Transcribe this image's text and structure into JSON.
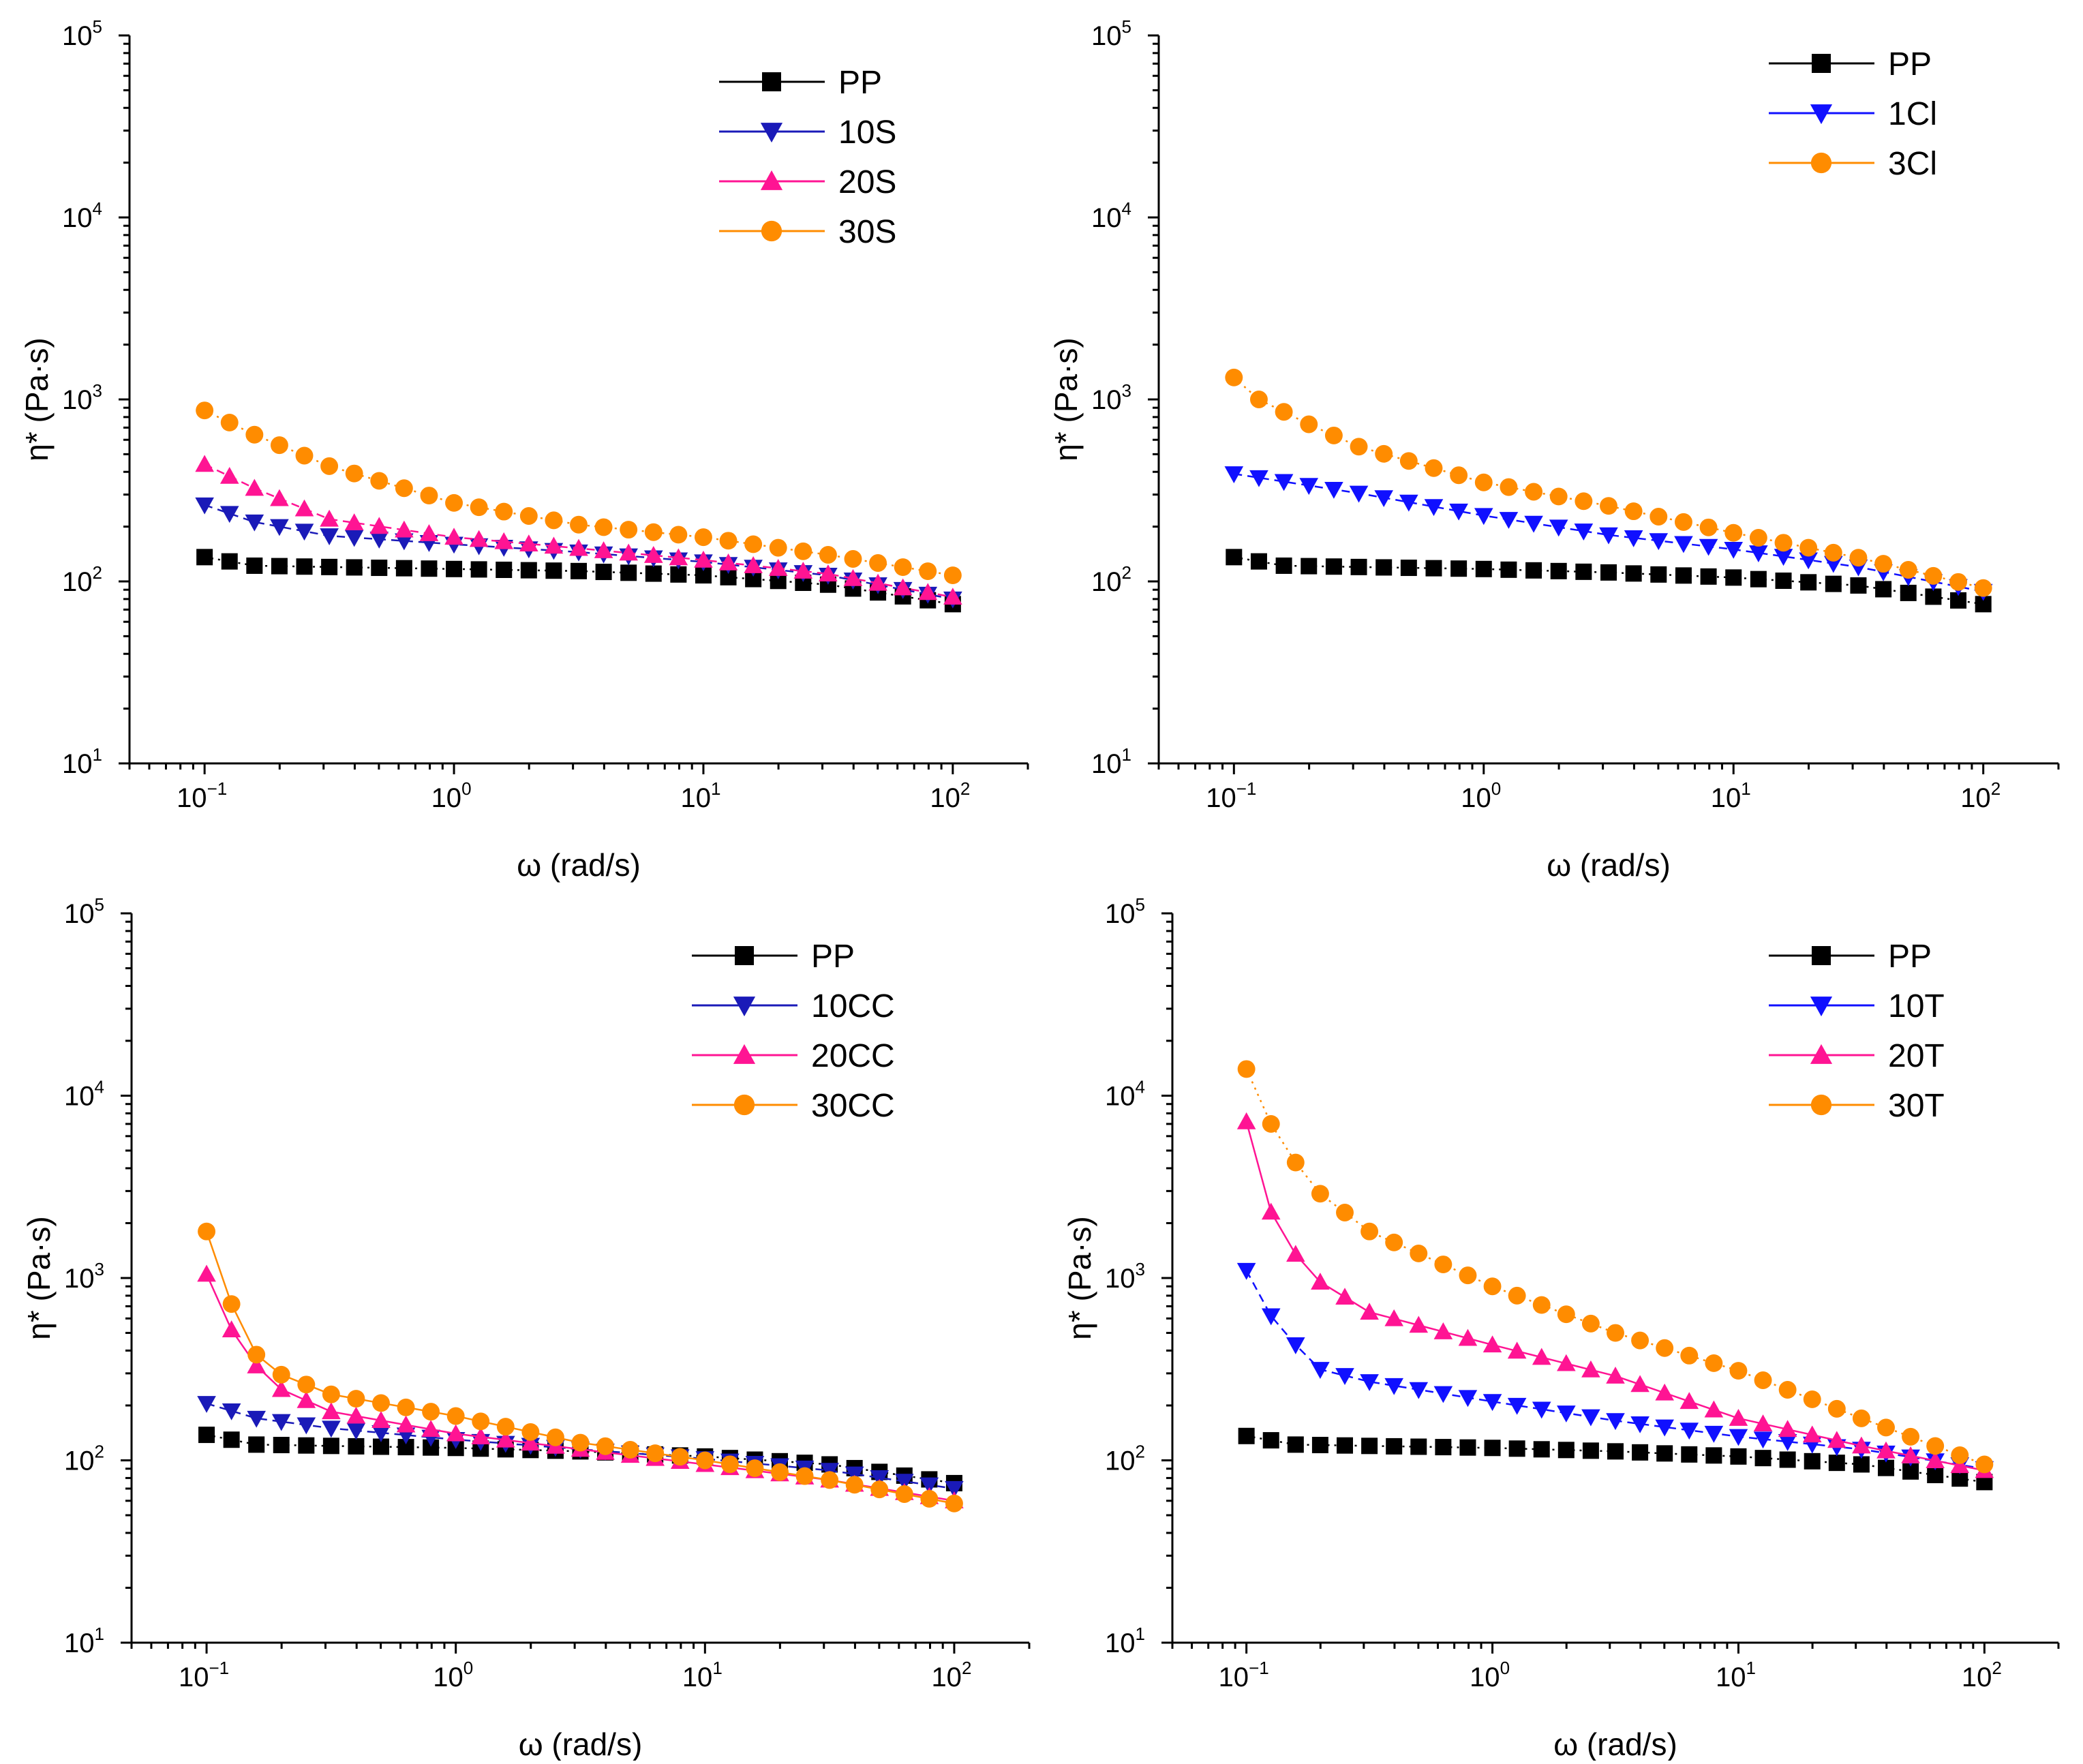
{
  "figure": {
    "panels_count": 4
  },
  "chart_data": [
    {
      "type": "scatter",
      "panel": "top-left",
      "xlabel": "ω (rad/s)",
      "ylabel": "η* (Pa·s)",
      "xscale": "log",
      "yscale": "log",
      "xlim": [
        0.05,
        200
      ],
      "ylim": [
        10,
        100000
      ],
      "xticks": [
        {
          "base": "10",
          "exp": "−1",
          "value": 0.1
        },
        {
          "base": "10",
          "exp": "0",
          "value": 1
        },
        {
          "base": "10",
          "exp": "1",
          "value": 10
        },
        {
          "base": "10",
          "exp": "2",
          "value": 100
        }
      ],
      "yticks": [
        {
          "base": "10",
          "exp": "1",
          "value": 10
        },
        {
          "base": "10",
          "exp": "2",
          "value": 100
        },
        {
          "base": "10",
          "exp": "3",
          "value": 1000
        },
        {
          "base": "10",
          "exp": "4",
          "value": 10000
        },
        {
          "base": "10",
          "exp": "5",
          "value": 100000
        }
      ],
      "legend_position": "top-right",
      "series": [
        {
          "name": "PP",
          "color": "#000000",
          "marker": "square",
          "line": "dotted",
          "x_log_range": [
            -1,
            2
          ],
          "points": 31,
          "anchors": [
            [
              -1,
              136
            ],
            [
              -0.8,
              122
            ],
            [
              -0.5,
              120
            ],
            [
              0,
              117
            ],
            [
              0.5,
              114
            ],
            [
              1,
              108
            ],
            [
              1.5,
              96
            ],
            [
              2,
              75
            ]
          ]
        },
        {
          "name": "10S",
          "color": "#1a1ab8",
          "marker": "triangle-down",
          "line": "dashed",
          "x_log_range": [
            -1,
            2
          ],
          "points": 31,
          "anchors": [
            [
              -1,
              263
            ],
            [
              -0.8,
              212
            ],
            [
              -0.5,
              178
            ],
            [
              0,
              160
            ],
            [
              0.5,
              145
            ],
            [
              1,
              128
            ],
            [
              1.5,
              108
            ],
            [
              2,
              80
            ]
          ]
        },
        {
          "name": "20S",
          "color": "#ff1493",
          "marker": "triangle-up",
          "line": "dashed",
          "x_log_range": [
            -1,
            2
          ],
          "points": 31,
          "anchors": [
            [
              -1,
              440
            ],
            [
              -0.8,
              325
            ],
            [
              -0.5,
              220
            ],
            [
              0,
              175
            ],
            [
              0.5,
              152
            ],
            [
              1,
              131
            ],
            [
              1.5,
              110
            ],
            [
              2,
              82
            ]
          ]
        },
        {
          "name": "30S",
          "color": "#ff8c00",
          "marker": "circle",
          "line": "dotted",
          "x_log_range": [
            -1,
            2
          ],
          "points": 31,
          "anchors": [
            [
              -1,
              870
            ],
            [
              -0.8,
              640
            ],
            [
              -0.5,
              430
            ],
            [
              0,
              270
            ],
            [
              0.5,
              205
            ],
            [
              1,
              175
            ],
            [
              1.5,
              140
            ],
            [
              2,
              108
            ]
          ]
        }
      ]
    },
    {
      "type": "scatter",
      "panel": "top-right",
      "xlabel": "ω (rad/s)",
      "ylabel": "η* (Pa·s)",
      "xscale": "log",
      "yscale": "log",
      "xlim": [
        0.05,
        200
      ],
      "ylim": [
        10,
        100000
      ],
      "xticks": [
        {
          "base": "10",
          "exp": "−1",
          "value": 0.1
        },
        {
          "base": "10",
          "exp": "0",
          "value": 1
        },
        {
          "base": "10",
          "exp": "1",
          "value": 10
        },
        {
          "base": "10",
          "exp": "2",
          "value": 100
        }
      ],
      "yticks": [
        {
          "base": "10",
          "exp": "1",
          "value": 10
        },
        {
          "base": "10",
          "exp": "2",
          "value": 100
        },
        {
          "base": "10",
          "exp": "3",
          "value": 1000
        },
        {
          "base": "10",
          "exp": "4",
          "value": 10000
        },
        {
          "base": "10",
          "exp": "5",
          "value": 100000
        }
      ],
      "legend_position": "top-right",
      "series": [
        {
          "name": "PP",
          "color": "#000000",
          "marker": "square",
          "line": "dotted",
          "x_log_range": [
            -1,
            2
          ],
          "points": 31,
          "anchors": [
            [
              -1,
              136
            ],
            [
              -0.8,
              122
            ],
            [
              -0.5,
              120
            ],
            [
              0,
              117
            ],
            [
              0.5,
              112
            ],
            [
              1,
              105
            ],
            [
              1.5,
              95
            ],
            [
              2,
              75
            ]
          ]
        },
        {
          "name": "1Cl",
          "color": "#1010ff",
          "marker": "triangle-down",
          "line": "dashed",
          "x_log_range": [
            -1,
            2
          ],
          "points": 31,
          "anchors": [
            [
              -1,
              390
            ],
            [
              -0.5,
              305
            ],
            [
              0,
              230
            ],
            [
              0.5,
              180
            ],
            [
              1,
              150
            ],
            [
              1.5,
              120
            ],
            [
              2,
              88
            ]
          ]
        },
        {
          "name": "3Cl",
          "color": "#ff8c00",
          "marker": "circle",
          "line": "dotted",
          "x_log_range": [
            -1,
            2
          ],
          "points": 31,
          "anchors": [
            [
              -1,
              1320
            ],
            [
              -0.9,
              1000
            ],
            [
              -0.7,
              730
            ],
            [
              -0.5,
              550
            ],
            [
              0,
              350
            ],
            [
              0.5,
              260
            ],
            [
              1,
              185
            ],
            [
              1.5,
              135
            ],
            [
              2,
              92
            ]
          ]
        }
      ]
    },
    {
      "type": "scatter",
      "panel": "bottom-left",
      "xlabel": "ω (rad/s)",
      "ylabel": "η* (Pa·s)",
      "xscale": "log",
      "yscale": "log",
      "xlim": [
        0.05,
        200
      ],
      "ylim": [
        10,
        100000
      ],
      "xticks": [
        {
          "base": "10",
          "exp": "−1",
          "value": 0.1
        },
        {
          "base": "10",
          "exp": "0",
          "value": 1
        },
        {
          "base": "10",
          "exp": "1",
          "value": 10
        },
        {
          "base": "10",
          "exp": "2",
          "value": 100
        }
      ],
      "yticks": [
        {
          "base": "10",
          "exp": "1",
          "value": 10
        },
        {
          "base": "10",
          "exp": "2",
          "value": 100
        },
        {
          "base": "10",
          "exp": "3",
          "value": 1000
        },
        {
          "base": "10",
          "exp": "4",
          "value": 10000
        },
        {
          "base": "10",
          "exp": "5",
          "value": 100000
        }
      ],
      "legend_position": "top-right",
      "series": [
        {
          "name": "PP",
          "color": "#000000",
          "marker": "square",
          "line": "dotted",
          "x_log_range": [
            -1,
            2
          ],
          "points": 31,
          "anchors": [
            [
              -1,
              138
            ],
            [
              -0.8,
              122
            ],
            [
              -0.5,
              120
            ],
            [
              0,
              117
            ],
            [
              0.5,
              112
            ],
            [
              1,
              105
            ],
            [
              1.5,
              95
            ],
            [
              2,
              75
            ]
          ]
        },
        {
          "name": "10CC",
          "color": "#1a1ab8",
          "marker": "triangle-down",
          "line": "dashed",
          "x_log_range": [
            -1,
            2
          ],
          "points": 31,
          "anchors": [
            [
              -1,
              205
            ],
            [
              -0.8,
              170
            ],
            [
              -0.5,
              150
            ],
            [
              0,
              130
            ],
            [
              0.5,
              115
            ],
            [
              1,
              102
            ],
            [
              1.5,
              88
            ],
            [
              2,
              70
            ]
          ]
        },
        {
          "name": "20CC",
          "color": "#ff1493",
          "marker": "triangle-up",
          "line": "solid",
          "x_log_range": [
            -1,
            2
          ],
          "points": 31,
          "anchors": [
            [
              -1,
              1050
            ],
            [
              -0.9,
              520
            ],
            [
              -0.8,
              330
            ],
            [
              -0.7,
              245
            ],
            [
              -0.5,
              185
            ],
            [
              0,
              140
            ],
            [
              0.5,
              115
            ],
            [
              1,
              95
            ],
            [
              1.5,
              78
            ],
            [
              2,
              60
            ]
          ]
        },
        {
          "name": "30CC",
          "color": "#ff8c00",
          "marker": "circle",
          "line": "solid",
          "x_log_range": [
            -1,
            2
          ],
          "points": 31,
          "anchors": [
            [
              -1,
              1800
            ],
            [
              -0.9,
              720
            ],
            [
              -0.8,
              380
            ],
            [
              -0.7,
              295
            ],
            [
              -0.5,
              230
            ],
            [
              0,
              175
            ],
            [
              0.5,
              125
            ],
            [
              1,
              100
            ],
            [
              1.5,
              78
            ],
            [
              2,
              58
            ]
          ]
        }
      ]
    },
    {
      "type": "scatter",
      "panel": "bottom-right",
      "xlabel": "ω (rad/s)",
      "ylabel": "η* (Pa·s)",
      "xscale": "log",
      "yscale": "log",
      "xlim": [
        0.05,
        200
      ],
      "ylim": [
        10,
        100000
      ],
      "xticks": [
        {
          "base": "10",
          "exp": "−1",
          "value": 0.1
        },
        {
          "base": "10",
          "exp": "0",
          "value": 1
        },
        {
          "base": "10",
          "exp": "1",
          "value": 10
        },
        {
          "base": "10",
          "exp": "2",
          "value": 100
        }
      ],
      "yticks": [
        {
          "base": "10",
          "exp": "1",
          "value": 10
        },
        {
          "base": "10",
          "exp": "2",
          "value": 100
        },
        {
          "base": "10",
          "exp": "3",
          "value": 1000
        },
        {
          "base": "10",
          "exp": "4",
          "value": 10000
        },
        {
          "base": "10",
          "exp": "5",
          "value": 100000
        }
      ],
      "legend_position": "top-right",
      "series": [
        {
          "name": "PP",
          "color": "#000000",
          "marker": "square",
          "line": "dotted",
          "x_log_range": [
            -1,
            2
          ],
          "points": 31,
          "anchors": [
            [
              -1,
              136
            ],
            [
              -0.8,
              122
            ],
            [
              -0.5,
              120
            ],
            [
              0,
              117
            ],
            [
              0.5,
              112
            ],
            [
              1,
              105
            ],
            [
              1.5,
              95
            ],
            [
              2,
              76
            ]
          ]
        },
        {
          "name": "10T",
          "color": "#1010ff",
          "marker": "triangle-down",
          "line": "dashed",
          "x_log_range": [
            -1,
            2
          ],
          "points": 31,
          "anchors": [
            [
              -1,
              1100
            ],
            [
              -0.9,
              620
            ],
            [
              -0.8,
              430
            ],
            [
              -0.7,
              315
            ],
            [
              -0.5,
              270
            ],
            [
              0,
              210
            ],
            [
              0.5,
              165
            ],
            [
              1,
              135
            ],
            [
              1.5,
              115
            ],
            [
              2,
              90
            ]
          ]
        },
        {
          "name": "20T",
          "color": "#ff1493",
          "marker": "triangle-up",
          "line": "solid",
          "x_log_range": [
            -1,
            2
          ],
          "points": 31,
          "anchors": [
            [
              -1,
              7200
            ],
            [
              -0.9,
              2300
            ],
            [
              -0.8,
              1350
            ],
            [
              -0.7,
              950
            ],
            [
              -0.5,
              650
            ],
            [
              0,
              430
            ],
            [
              0.5,
              290
            ],
            [
              1,
              170
            ],
            [
              1.5,
              120
            ],
            [
              2,
              88
            ]
          ]
        },
        {
          "name": "30T",
          "color": "#ff8c00",
          "marker": "circle",
          "line": "dotted",
          "x_log_range": [
            -1,
            2
          ],
          "points": 31,
          "anchors": [
            [
              -1,
              14000
            ],
            [
              -0.9,
              7000
            ],
            [
              -0.8,
              4300
            ],
            [
              -0.7,
              2900
            ],
            [
              -0.5,
              1800
            ],
            [
              0,
              900
            ],
            [
              0.5,
              500
            ],
            [
              1,
              310
            ],
            [
              1.5,
              170
            ],
            [
              2,
              95
            ]
          ]
        }
      ]
    }
  ]
}
